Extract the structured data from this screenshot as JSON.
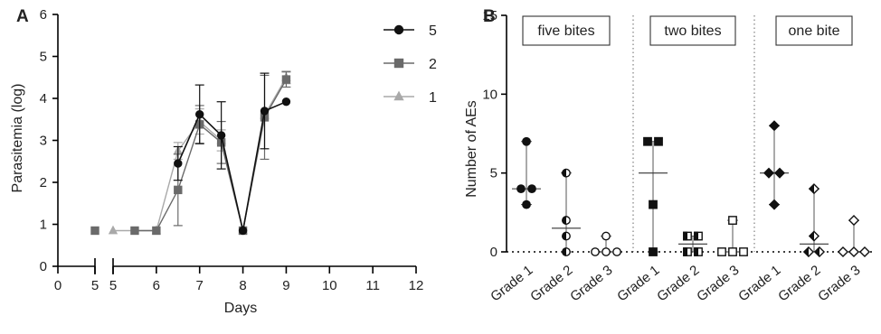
{
  "chart_data": [
    {
      "type": "line",
      "panel_label": "A",
      "title": "",
      "xlabel": "Days",
      "ylabel": "Parasitemia  (log)",
      "ylim": [
        0,
        6
      ],
      "yticks": [
        "0",
        "1",
        "2",
        "3",
        "4",
        "5",
        "6"
      ],
      "x_axis_segments": [
        {
          "xlim": [
            0,
            5
          ],
          "ticks": [
            "0",
            "5"
          ]
        },
        {
          "xlim": [
            5,
            12
          ],
          "ticks": [
            "5",
            "6",
            "7",
            "8",
            "9",
            "10",
            "11",
            "12"
          ]
        }
      ],
      "legend_position": "top-right",
      "grid": false,
      "series": [
        {
          "name": "5",
          "marker": "circle",
          "color": "#111111",
          "points": [
            {
              "x": 6.5,
              "y": 2.45,
              "err": 0.4
            },
            {
              "x": 7.0,
              "y": 3.62,
              "err": 0.7
            },
            {
              "x": 7.5,
              "y": 3.12,
              "err": 0.8
            },
            {
              "x": 8.0,
              "y": 0.85
            },
            {
              "x": 8.5,
              "y": 3.7,
              "err": 0.9
            },
            {
              "x": 9.0,
              "y": 3.92
            }
          ]
        },
        {
          "name": "2",
          "marker": "square",
          "color": "#6a6a6a",
          "points": [
            {
              "x": 5.0,
              "y": 0.85,
              "seg": 0
            },
            {
              "x": 5.5,
              "y": 0.85
            },
            {
              "x": 6.0,
              "y": 0.85
            },
            {
              "x": 6.5,
              "y": 1.82,
              "err": 0.85
            },
            {
              "x": 7.0,
              "y": 3.38,
              "err": 0.45
            },
            {
              "x": 7.5,
              "y": 2.95,
              "err": 0.5
            },
            {
              "x": 8.0,
              "y": 0.85
            },
            {
              "x": 8.5,
              "y": 3.55,
              "err": 1.0
            },
            {
              "x": 9.0,
              "y": 4.45,
              "err": 0.18
            }
          ]
        },
        {
          "name": "1",
          "marker": "triangle",
          "color": "#a9a9a9",
          "points": [
            {
              "x": 5.0,
              "y": 0.85
            },
            {
              "x": 6.0,
              "y": 0.85
            },
            {
              "x": 6.5,
              "y": 2.75,
              "err": 0.2
            },
            {
              "x": 7.0,
              "y": 3.45,
              "err": 0.3
            },
            {
              "x": 7.5,
              "y": 3.0,
              "err": 0.25
            },
            {
              "x": 8.0,
              "y": 0.85
            },
            {
              "x": 8.5,
              "y": 3.6
            },
            {
              "x": 9.0,
              "y": 4.5,
              "err": 0.15
            }
          ]
        }
      ]
    },
    {
      "type": "scatter",
      "panel_label": "B",
      "title": "",
      "xlabel": "",
      "ylabel": "Number of AEs",
      "ylim": [
        0,
        15
      ],
      "yticks": [
        "0",
        "5",
        "10",
        "15"
      ],
      "reference_line_y": 0,
      "grid": false,
      "groups": [
        {
          "label": "five bites",
          "marker": "circle",
          "categories": [
            {
              "name": "Grade 1",
              "fill": "black",
              "points": [
                4,
                4,
                3,
                7
              ],
              "median": 4,
              "range": [
                3,
                7
              ]
            },
            {
              "name": "Grade 2",
              "fill": "half",
              "points": [
                5,
                2,
                1,
                0
              ],
              "median": 1.5,
              "range": [
                0,
                5
              ]
            },
            {
              "name": "Grade 3",
              "fill": "white",
              "points": [
                0,
                0,
                0,
                1
              ],
              "median": 0,
              "range": [
                0,
                1
              ]
            }
          ]
        },
        {
          "label": "two bites",
          "marker": "square",
          "categories": [
            {
              "name": "Grade 1",
              "fill": "black",
              "points": [
                7,
                7,
                3,
                0
              ],
              "median": 5,
              "range": [
                0,
                7
              ]
            },
            {
              "name": "Grade 2",
              "fill": "half",
              "points": [
                1,
                1,
                0,
                0
              ],
              "median": 0.5,
              "range": [
                0,
                1
              ]
            },
            {
              "name": "Grade 3",
              "fill": "white",
              "points": [
                0,
                0,
                0,
                2
              ],
              "median": 0,
              "range": [
                0,
                2
              ]
            }
          ]
        },
        {
          "label": "one bite",
          "marker": "diamond",
          "categories": [
            {
              "name": "Grade 1",
              "fill": "black",
              "points": [
                5,
                5,
                8,
                3
              ],
              "median": 5,
              "range": [
                3,
                8
              ]
            },
            {
              "name": "Grade 2",
              "fill": "half",
              "points": [
                0,
                0,
                1,
                4
              ],
              "median": 0.5,
              "range": [
                0,
                4
              ]
            },
            {
              "name": "Grade 3",
              "fill": "white",
              "points": [
                0,
                0,
                0,
                2
              ],
              "median": 0,
              "range": [
                0,
                2
              ]
            }
          ]
        }
      ]
    }
  ]
}
